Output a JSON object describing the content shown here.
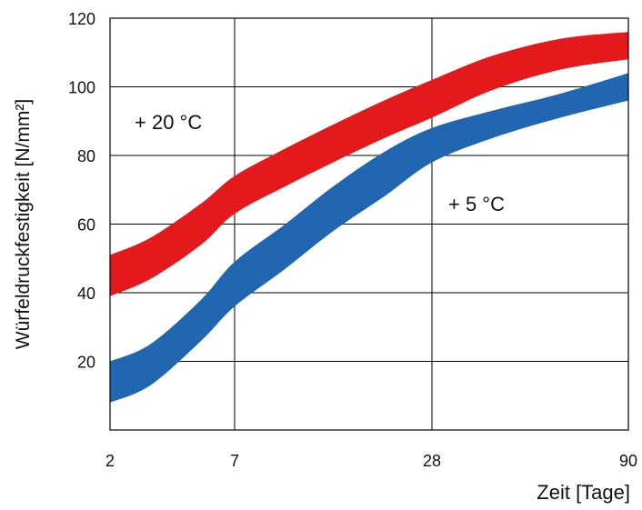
{
  "chart_data": {
    "type": "area",
    "ylabel": "Würfeldruckfestigkeit [N/mm²]",
    "xlabel": "Zeit [Tage]",
    "x_ticks": [
      "2",
      "7",
      "28",
      "90"
    ],
    "y_ticks": [
      20,
      40,
      60,
      80,
      100,
      120
    ],
    "ylim": [
      0,
      120
    ],
    "grid": true,
    "series": [
      {
        "name": "+ 20 °C",
        "color": "#e3191c",
        "x": [
          2,
          3,
          5,
          7,
          10,
          14,
          20,
          28,
          40,
          60,
          90
        ],
        "upper": [
          51,
          56,
          66,
          74,
          82,
          89,
          96,
          102,
          109,
          114,
          116
        ],
        "lower": [
          39,
          44,
          54,
          63,
          71,
          78,
          85,
          91,
          99,
          105,
          108
        ]
      },
      {
        "name": "+ 5 °C",
        "color": "#2166b0",
        "x": [
          2,
          3,
          5,
          7,
          10,
          14,
          20,
          28,
          40,
          60,
          90
        ],
        "upper": [
          20,
          25,
          38,
          49,
          60,
          71,
          81,
          88,
          93,
          98,
          104
        ],
        "lower": [
          8,
          13,
          26,
          36,
          47,
          58,
          68,
          78,
          85,
          91,
          96
        ]
      }
    ]
  }
}
